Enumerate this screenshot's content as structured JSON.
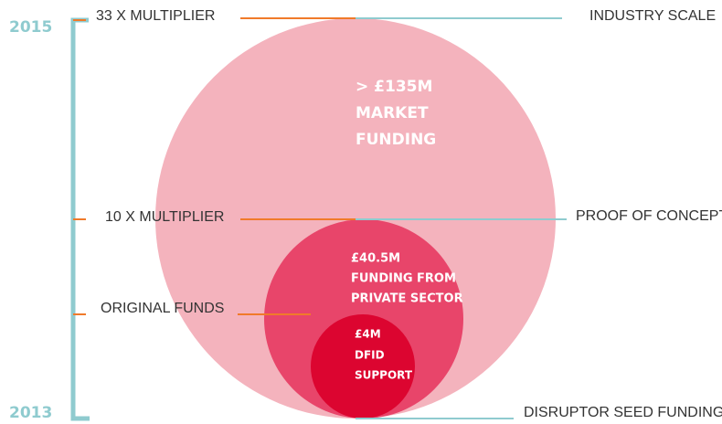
{
  "years": {
    "top": "2015",
    "bottom": "2013"
  },
  "left_labels": [
    "33 X MULTIPLIER",
    "10 X MULTIPLIER",
    "ORIGINAL FUNDS"
  ],
  "right_labels": [
    "INDUSTRY SCALE",
    "PROOF OF CONCEPT",
    "DISRUPTOR SEED FUNDING"
  ],
  "circles": [
    {
      "lines": [
        "> £135M",
        "MARKET",
        "FUNDING"
      ]
    },
    {
      "lines": [
        "£40.5M",
        "FUNDING FROM",
        "PRIVATE SECTOR"
      ]
    },
    {
      "lines": [
        "£4M",
        "DFID",
        "SUPPORT"
      ]
    }
  ]
}
